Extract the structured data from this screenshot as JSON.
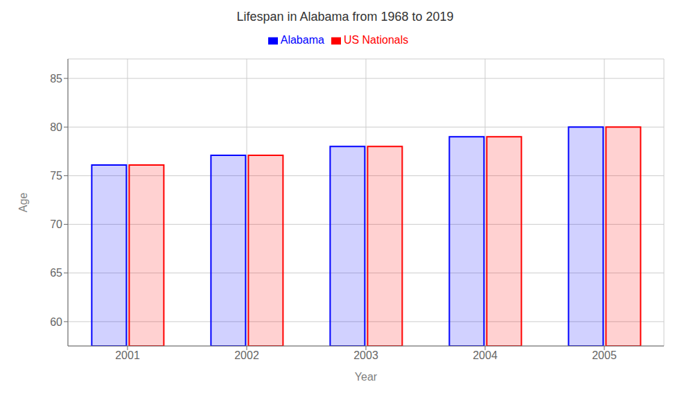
{
  "chart_data": {
    "type": "bar",
    "title": "Lifespan in Alabama from 1968 to 2019",
    "x_label": "Year",
    "y_label": "Age",
    "categories": [
      "2001",
      "2002",
      "2003",
      "2004",
      "2005"
    ],
    "series": [
      {
        "name": "Alabama",
        "color": "#0000FF",
        "values": [
          76.1,
          77.1,
          78.0,
          79.0,
          80.0
        ]
      },
      {
        "name": "US Nationals",
        "color": "#FF0000",
        "values": [
          76.1,
          77.1,
          78.0,
          79.0,
          80.0
        ]
      }
    ],
    "ylim": [
      57.5,
      87
    ],
    "yticks": [
      60,
      65,
      70,
      75,
      80,
      85
    ],
    "grid": true,
    "legend": "top"
  }
}
